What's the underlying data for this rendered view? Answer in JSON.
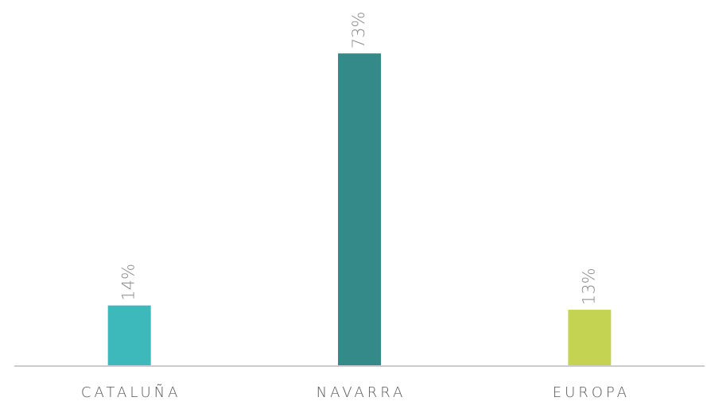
{
  "chart_data": {
    "type": "bar",
    "categories": [
      "CATALUÑA",
      "NAVARRA",
      "EUROPA"
    ],
    "values": [
      14,
      73,
      13
    ],
    "value_labels": [
      "14%",
      "73%",
      "13%"
    ],
    "colors": [
      "#3db8bb",
      "#348a88",
      "#c4d452"
    ]
  }
}
